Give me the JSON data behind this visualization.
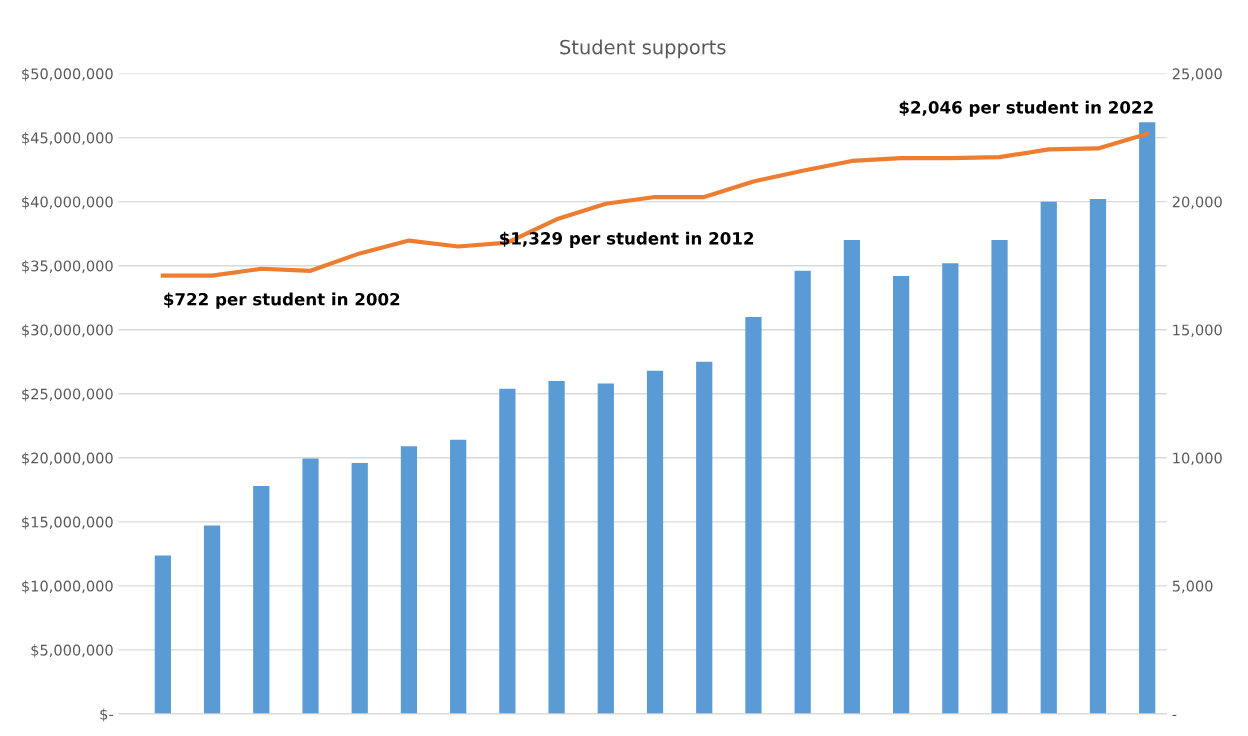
{
  "chart_data": {
    "type": "bar",
    "title": "Student supports",
    "categories": [
      null,
      null,
      null,
      null,
      null,
      null,
      null,
      null,
      null,
      null,
      null,
      null,
      null,
      null,
      null,
      null,
      null,
      null,
      null,
      null,
      null
    ],
    "series": [
      {
        "color": "#5b9bd5",
        "values": [
          12370000,
          14720000,
          17800000,
          19950000,
          19600000,
          20900000,
          21400000,
          25400000,
          26000000,
          25800000,
          26800000,
          27500000,
          31000000,
          34600000,
          37000000,
          34200000,
          35200000,
          37000000,
          40000000,
          40200000,
          46200000
        ]
      },
      {
        "type": "line",
        "axis": "y2",
        "color": "#ed7d31",
        "values": [
          17110,
          17110,
          17380,
          17300,
          17980,
          18480,
          18250,
          18400,
          19310,
          19920,
          20180,
          20180,
          20790,
          21210,
          21590,
          21700,
          21700,
          21740,
          22040,
          22080,
          22650
        ]
      }
    ],
    "ylim": [
      0,
      50000000
    ],
    "yticks": [
      {
        "value": 0,
        "label": "$-"
      },
      {
        "value": 5000000,
        "label": "$5,000,000"
      },
      {
        "value": 10000000,
        "label": "$10,000,000"
      },
      {
        "value": 15000000,
        "label": "$15,000,000"
      },
      {
        "value": 20000000,
        "label": "$20,000,000"
      },
      {
        "value": 25000000,
        "label": "$25,000,000"
      },
      {
        "value": 30000000,
        "label": "$30,000,000"
      },
      {
        "value": 35000000,
        "label": "$35,000,000"
      },
      {
        "value": 40000000,
        "label": "$40,000,000"
      },
      {
        "value": 45000000,
        "label": "$45,000,000"
      },
      {
        "value": 50000000,
        "label": "$50,000,000"
      }
    ],
    "y2lim": [
      0,
      25000
    ],
    "y2ticks": [
      {
        "value": 0,
        "label": "-"
      },
      {
        "value": 5000,
        "label": "5,000"
      },
      {
        "value": 10000,
        "label": "10,000"
      },
      {
        "value": 15000,
        "label": "15,000"
      },
      {
        "value": 20000,
        "label": "20,000"
      },
      {
        "value": 25000,
        "label": "25,000"
      }
    ],
    "grid": "y",
    "annotations": [
      "$722 per student in 2002",
      "$1,329 per student in 2012",
      "$2,046 per student in 2022"
    ]
  }
}
